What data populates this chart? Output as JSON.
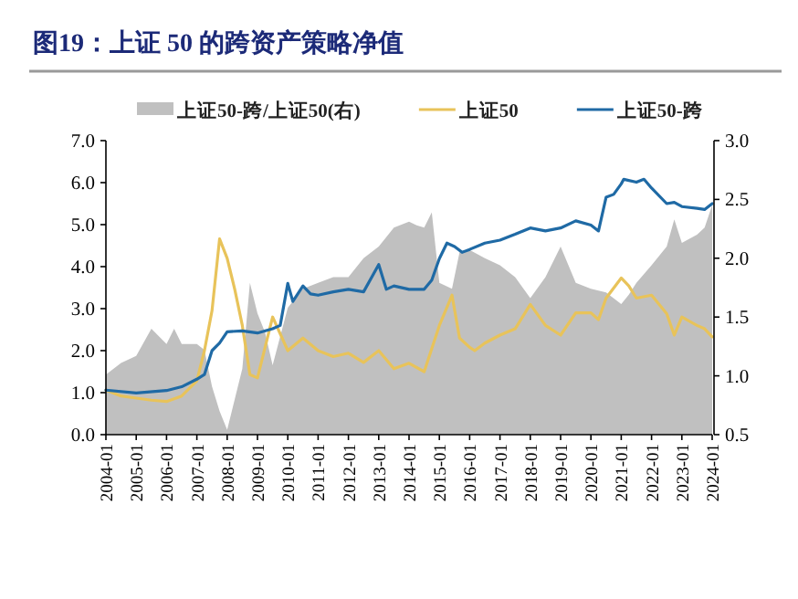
{
  "chart_data": {
    "type": "line",
    "title": "图19：上证 50 的跨资产策略净值",
    "xlim": [
      "2004-01",
      "2024-01"
    ],
    "xticks": [
      "2004-01",
      "2005-01",
      "2006-01",
      "2007-01",
      "2008-01",
      "2009-01",
      "2010-01",
      "2011-01",
      "2012-01",
      "2013-01",
      "2014-01",
      "2015-01",
      "2016-01",
      "2017-01",
      "2018-01",
      "2019-01",
      "2020-01",
      "2021-01",
      "2022-01",
      "2023-01",
      "2024-01"
    ],
    "ylim": [
      0,
      7
    ],
    "yticks": [
      {
        "value": 0,
        "label": "0.0"
      },
      {
        "value": 1,
        "label": "1.0"
      },
      {
        "value": 2,
        "label": "2.0"
      },
      {
        "value": 3,
        "label": "3.0"
      },
      {
        "value": 4,
        "label": "4.0"
      },
      {
        "value": 5,
        "label": "5.0"
      },
      {
        "value": 6,
        "label": "6.0"
      },
      {
        "value": 7,
        "label": "7.0"
      }
    ],
    "y2lim": [
      0.5,
      3
    ],
    "y2ticks": [
      0.5,
      {
        "value": 1,
        "label": "1.0"
      },
      1.5,
      {
        "value": 2,
        "label": "2.0"
      },
      2.5,
      {
        "value": 3,
        "label": "3.0"
      }
    ],
    "legend": "top",
    "grid": false,
    "series": [
      {
        "name": "上证50-跨/上证50(右)",
        "type": "area",
        "axis": "y2",
        "color": "#c0c0c0",
        "x": [
          "2004-01",
          "2004-07",
          "2005-01",
          "2005-07",
          "2006-01",
          "2006-04",
          "2006-07",
          "2007-01",
          "2007-04",
          "2007-07",
          "2007-10",
          "2008-01",
          "2008-04",
          "2008-07",
          "2008-10",
          "2009-01",
          "2009-04",
          "2009-07",
          "2010-01",
          "2010-07",
          "2011-01",
          "2011-07",
          "2012-01",
          "2012-07",
          "2013-01",
          "2013-07",
          "2014-01",
          "2014-04",
          "2014-07",
          "2014-10",
          "2015-01",
          "2015-06",
          "2015-09",
          "2016-01",
          "2016-07",
          "2017-01",
          "2017-07",
          "2018-01",
          "2018-07",
          "2019-01",
          "2019-07",
          "2020-01",
          "2020-07",
          "2021-01",
          "2021-04",
          "2021-07",
          "2022-01",
          "2022-07",
          "2022-10",
          "2023-01",
          "2023-07",
          "2023-10",
          "2024-01"
        ],
        "values": [
          1.01,
          1.11,
          1.17,
          1.4,
          1.27,
          1.4,
          1.27,
          1.27,
          1.22,
          0.91,
          0.7,
          0.54,
          0.8,
          1.06,
          1.79,
          1.53,
          1.37,
          1.09,
          1.58,
          1.74,
          1.79,
          1.84,
          1.84,
          2.0,
          2.1,
          2.26,
          2.31,
          2.28,
          2.26,
          2.39,
          1.79,
          1.74,
          2.05,
          2.07,
          2.0,
          1.94,
          1.84,
          1.66,
          1.84,
          2.1,
          1.79,
          1.74,
          1.71,
          1.61,
          1.69,
          1.79,
          1.94,
          2.1,
          2.33,
          2.13,
          2.2,
          2.26,
          2.45
        ]
      },
      {
        "name": "上证50",
        "type": "line",
        "color": "#e8c35a",
        "x": [
          "2004-01",
          "2004-07",
          "2005-01",
          "2005-07",
          "2006-01",
          "2006-07",
          "2007-01",
          "2007-04",
          "2007-07",
          "2007-10",
          "2008-01",
          "2008-04",
          "2008-07",
          "2008-10",
          "2009-01",
          "2009-07",
          "2010-01",
          "2010-07",
          "2011-01",
          "2011-07",
          "2012-01",
          "2012-07",
          "2013-01",
          "2013-07",
          "2014-01",
          "2014-07",
          "2015-01",
          "2015-06",
          "2015-09",
          "2016-01",
          "2016-03",
          "2016-07",
          "2017-01",
          "2017-07",
          "2018-01",
          "2018-07",
          "2019-01",
          "2019-07",
          "2020-01",
          "2020-04",
          "2020-07",
          "2021-01",
          "2021-04",
          "2021-07",
          "2022-01",
          "2022-07",
          "2022-10",
          "2023-01",
          "2023-07",
          "2023-10",
          "2024-01"
        ],
        "values": [
          1.06,
          0.92,
          0.87,
          0.82,
          0.79,
          0.92,
          1.28,
          2.0,
          2.95,
          4.66,
          4.2,
          3.46,
          2.6,
          1.43,
          1.35,
          2.8,
          2.0,
          2.3,
          2.0,
          1.86,
          1.94,
          1.72,
          2.0,
          1.57,
          1.7,
          1.5,
          2.6,
          3.32,
          2.3,
          2.08,
          2.0,
          2.18,
          2.37,
          2.52,
          3.1,
          2.6,
          2.37,
          2.9,
          2.9,
          2.74,
          3.25,
          3.73,
          3.54,
          3.25,
          3.32,
          2.88,
          2.37,
          2.8,
          2.6,
          2.52,
          2.33
        ]
      },
      {
        "name": "上证50-跨",
        "type": "line",
        "color": "#1f6aa5",
        "x": [
          "2004-01",
          "2005-01",
          "2006-01",
          "2006-07",
          "2007-01",
          "2007-04",
          "2007-07",
          "2007-10",
          "2008-01",
          "2008-07",
          "2009-01",
          "2009-07",
          "2009-10",
          "2010-01",
          "2010-03",
          "2010-07",
          "2010-10",
          "2011-01",
          "2011-07",
          "2012-01",
          "2012-07",
          "2013-01",
          "2013-04",
          "2013-07",
          "2014-01",
          "2014-07",
          "2014-10",
          "2015-01",
          "2015-04",
          "2015-07",
          "2015-10",
          "2016-01",
          "2016-07",
          "2017-01",
          "2017-07",
          "2018-01",
          "2018-07",
          "2019-01",
          "2019-07",
          "2020-01",
          "2020-04",
          "2020-07",
          "2020-10",
          "2021-01",
          "2021-02",
          "2021-07",
          "2021-10",
          "2022-01",
          "2022-07",
          "2022-10",
          "2023-01",
          "2023-07",
          "2023-10",
          "2024-01"
        ],
        "values": [
          1.06,
          0.99,
          1.05,
          1.14,
          1.32,
          1.43,
          2.0,
          2.18,
          2.45,
          2.47,
          2.42,
          2.52,
          2.6,
          3.6,
          3.17,
          3.54,
          3.35,
          3.32,
          3.4,
          3.46,
          3.4,
          4.05,
          3.46,
          3.54,
          3.46,
          3.46,
          3.68,
          4.19,
          4.56,
          4.48,
          4.34,
          4.41,
          4.56,
          4.63,
          4.77,
          4.92,
          4.85,
          4.92,
          5.09,
          4.99,
          4.85,
          5.65,
          5.72,
          5.97,
          6.08,
          6.01,
          6.08,
          5.87,
          5.5,
          5.53,
          5.43,
          5.39,
          5.36,
          5.5
        ]
      }
    ]
  }
}
